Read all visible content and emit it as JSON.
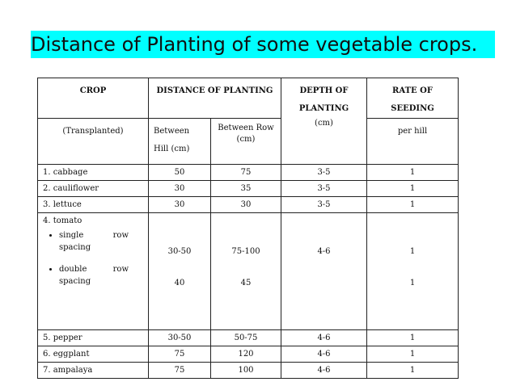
{
  "title": "Distance of Planting of some vegetable crops.",
  "table": {
    "header": {
      "crop": "CROP",
      "distance": "DISTANCE OF PLANTING",
      "depth": [
        "DEPTH OF",
        "PLANTING",
        "(cm)"
      ],
      "rate": [
        "RATE OF",
        "SEEDING"
      ]
    },
    "subheader": {
      "crop": "(Transplanted)",
      "hill": [
        "Between",
        "Hill (cm)"
      ],
      "row": "Between Row (cm)",
      "rate": "per hill"
    },
    "rows": [
      [
        "1.  cabbage",
        "50",
        "75",
        "3-5",
        "1"
      ],
      [
        "2.  cauliflower",
        "30",
        "35",
        "3-5",
        "1"
      ],
      [
        "3.  lettuce",
        "30",
        "30",
        "3-5",
        "1"
      ]
    ],
    "tomato": {
      "crop": "4.  tomato",
      "spacings": [
        "single row spacing",
        "double row spacing"
      ],
      "hill": [
        "30-50",
        "40"
      ],
      "row": [
        "75-100",
        "45"
      ],
      "depth": "4-6",
      "rate": [
        "1",
        "1"
      ]
    },
    "rows_after": [
      [
        "5.  pepper",
        "30-50",
        "50-75",
        "4-6",
        "1"
      ],
      [
        "6.  eggplant",
        "75",
        "120",
        "4-6",
        "1"
      ],
      [
        "7.  ampalaya",
        "75",
        "100",
        "4-6",
        "1"
      ]
    ]
  }
}
